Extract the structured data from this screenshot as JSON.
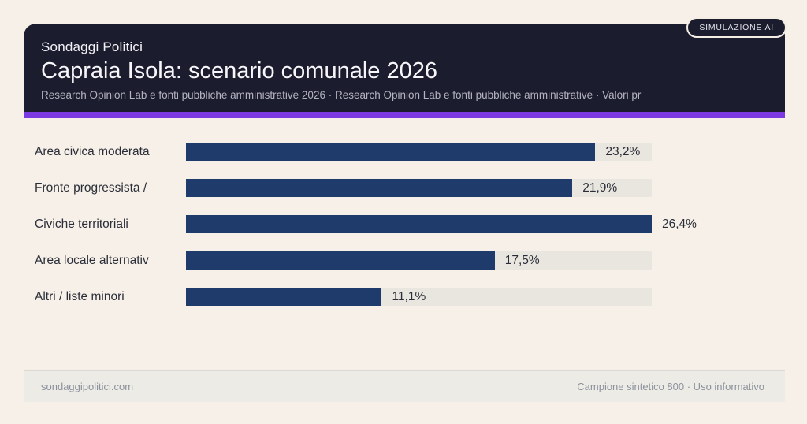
{
  "badge": {
    "label": "SIMULAZIONE AI"
  },
  "header": {
    "kicker": "Sondaggi Politici",
    "title": "Capraia Isola: scenario comunale 2026",
    "subtitle": "Research Opinion Lab e fonti pubbliche amministrative 2026 · Research Opinion Lab e fonti pubbliche amministrative · Valori pr"
  },
  "chart_data": {
    "type": "bar",
    "orientation": "horizontal",
    "title": "Capraia Isola: scenario comunale 2026",
    "categories": [
      "Area civica moderata",
      "Fronte progressista /",
      "Civiche territoriali",
      "Area locale alternativ",
      "Altri / liste minori"
    ],
    "values": [
      23.2,
      21.9,
      26.4,
      17.5,
      11.1
    ],
    "value_labels": [
      "23,2%",
      "21,9%",
      "26,4%",
      "17,5%",
      "11,1%"
    ],
    "xlim": [
      0,
      26.4
    ],
    "unit": "percent",
    "grid": false,
    "legend": false,
    "bar_color": "#1f3b6b",
    "track_color": "#e9e5df"
  },
  "footer": {
    "left": "sondaggipolitici.com",
    "right": "Campione sintetico 800 · Uso informativo"
  },
  "colors": {
    "page_bg": "#f6f0e8",
    "header_bg": "#1b1c2d",
    "accent_purple": "#7c3be2",
    "bar": "#1f3b6b",
    "track": "#e9e5df",
    "footer_bg": "#edebe6"
  }
}
